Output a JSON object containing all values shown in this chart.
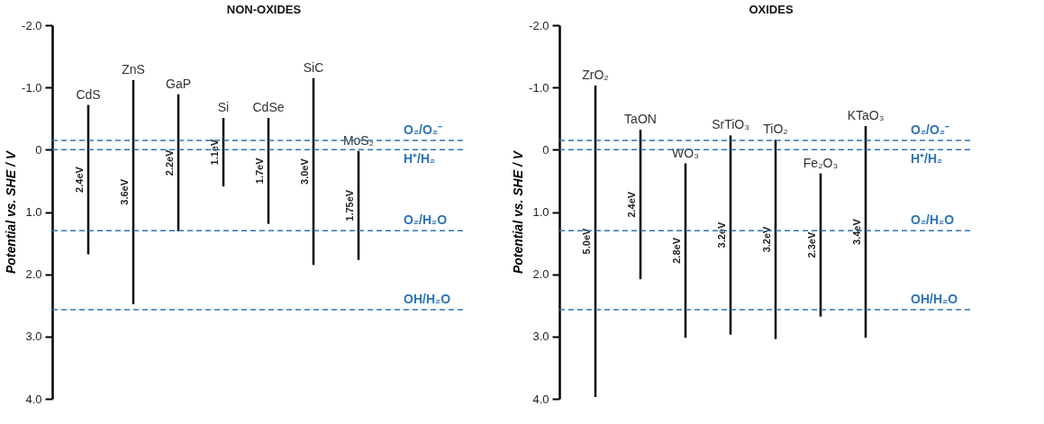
{
  "chart_data": [
    {
      "type": "bar",
      "title": "NON-OXIDES",
      "ylabel": "Potential vs. SHE / V",
      "categories": [
        "CdS",
        "ZnS",
        "GaP",
        "Si",
        "CdSe",
        "SiC",
        "MoS₂"
      ],
      "base": [
        -0.72,
        -1.12,
        -0.89,
        -0.51,
        -0.51,
        -1.15,
        0.02
      ],
      "values": [
        2.4,
        3.6,
        2.2,
        1.1,
        1.7,
        3.0,
        1.75
      ],
      "value_labels": [
        "2.4eV",
        "3.6eV",
        "2.2eV",
        "1.1eV",
        "1.7eV",
        "3.0eV",
        "1.75eV"
      ],
      "color": "#000000",
      "ylim": [
        4.0,
        -2.0
      ],
      "yticks": [
        {
          "value": -2,
          "label": "-2.0"
        },
        {
          "value": -1,
          "label": "-1.0"
        },
        0,
        {
          "value": 1,
          "label": "1.0"
        },
        {
          "value": 2,
          "label": "2.0"
        },
        {
          "value": 3,
          "label": "3.0"
        },
        {
          "value": 4,
          "label": "4.0"
        }
      ],
      "ref_lines": [
        {
          "axis": "y",
          "value": -0.15,
          "label": "O₂/O₂⁻",
          "color": "#2e75b6",
          "line_style": "dashed"
        },
        {
          "axis": "y",
          "value": 0.0,
          "label": "H⁺/H₂",
          "color": "#2e75b6",
          "line_style": "dashed"
        },
        {
          "axis": "y",
          "value": 1.3,
          "label": "O₂/H₂O",
          "color": "#2e75b6",
          "line_style": "dashed"
        },
        {
          "axis": "y",
          "value": 2.57,
          "label": "OH/H₂O",
          "color": "#2e75b6",
          "line_style": "dashed"
        }
      ]
    },
    {
      "type": "bar",
      "title": "OXIDES",
      "ylabel": "Potential vs. SHE / V",
      "categories": [
        "ZrO₂",
        "TaON",
        "WO₃",
        "SrTiO₃",
        "TiO₂",
        "Fe₂O₃",
        "KTaO₃"
      ],
      "base": [
        -1.03,
        -0.32,
        0.22,
        -0.23,
        -0.16,
        0.38,
        -0.38
      ],
      "values": [
        5.0,
        2.4,
        2.8,
        3.2,
        3.2,
        2.3,
        3.4
      ],
      "value_labels": [
        "5.0eV",
        "2.4eV",
        "2.8eV",
        "3.2eV",
        "3.2eV",
        "2.3eV",
        "3.4eV"
      ],
      "color": "#000000",
      "ylim": [
        4.0,
        -2.0
      ],
      "yticks": [
        {
          "value": -2,
          "label": "-2.0"
        },
        {
          "value": -1,
          "label": "-1.0"
        },
        0,
        {
          "value": 1,
          "label": "1.0"
        },
        {
          "value": 2,
          "label": "2.0"
        },
        {
          "value": 3,
          "label": "3.0"
        },
        {
          "value": 4,
          "label": "4.0"
        }
      ],
      "ref_lines": [
        {
          "axis": "y",
          "value": -0.15,
          "label": "O₂/O₂⁻",
          "color": "#2e75b6",
          "line_style": "dashed"
        },
        {
          "axis": "y",
          "value": 0.0,
          "label": "H⁺/H₂",
          "color": "#2e75b6",
          "line_style": "dashed"
        },
        {
          "axis": "y",
          "value": 1.3,
          "label": "O₂/H₂O",
          "color": "#2e75b6",
          "line_style": "dashed"
        },
        {
          "axis": "y",
          "value": 2.57,
          "label": "OH/H₂O",
          "color": "#2e75b6",
          "line_style": "dashed"
        }
      ]
    }
  ]
}
